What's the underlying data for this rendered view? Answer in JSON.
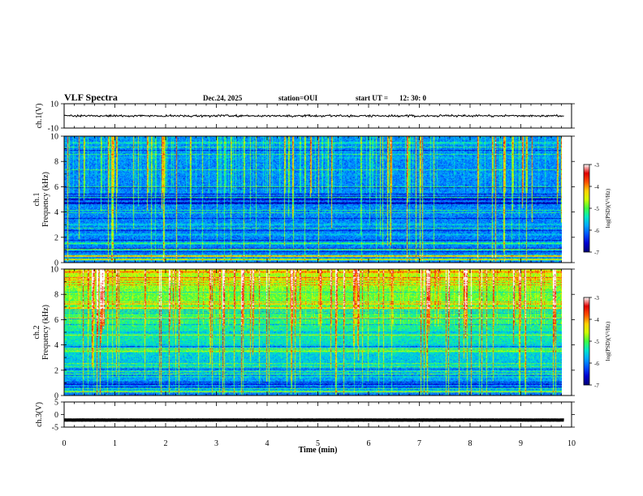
{
  "header": {
    "title": "VLF Spectra",
    "date": "Dec.24, 2025",
    "station": "station=OUI",
    "start_label": "start  UT  =",
    "start_time": "12: 30: 0"
  },
  "colors": {
    "cmap": [
      "#000078",
      "#0000d0",
      "#0050ff",
      "#00a8ff",
      "#00e8c8",
      "#40ff40",
      "#d0ff00",
      "#ffd000",
      "#ff5000",
      "#e00000",
      "#ffffff"
    ]
  },
  "chart_data": [
    {
      "type": "line",
      "name": "ch1-waveform",
      "ylabel": "ch.1(V)",
      "ylim": [
        -10,
        10
      ],
      "yticks": [
        "10",
        "-10"
      ],
      "level": 0,
      "noise_amplitude": 1.2,
      "xlim": [
        0,
        10
      ]
    },
    {
      "type": "heatmap",
      "name": "ch1-spectrogram",
      "ylabel": [
        "ch.1",
        "Frequency  (kHz)"
      ],
      "ylim": [
        0,
        10
      ],
      "yticks": [
        "0",
        "2",
        "4",
        "6",
        "8",
        "10"
      ],
      "x_end": 9.8,
      "colorbar": {
        "label": "log(PSD)(V²/Hz)",
        "ticks": [
          "-3",
          "-4",
          "-5",
          "-6",
          "-7"
        ],
        "range": [
          -7,
          -3
        ]
      },
      "bands": [
        {
          "f": 0.2,
          "v": -5.0
        },
        {
          "f": 0.5,
          "v": -4.6
        },
        {
          "f": 1.0,
          "v": -5.4
        },
        {
          "f": 1.5,
          "v": -4.9
        },
        {
          "f": 2.2,
          "v": -5.6
        },
        {
          "f": 3.0,
          "v": -5.5
        },
        {
          "f": 4.7,
          "v": -7.0
        },
        {
          "f": 5.0,
          "v": -6.9
        },
        {
          "f": 7.0,
          "v": -5.8
        },
        {
          "f": 8.3,
          "v": -5.7
        },
        {
          "f": 9.5,
          "v": -5.3
        }
      ],
      "base_level_low": -6.0,
      "base_level_high": -5.9,
      "spikes_per_min": 7
    },
    {
      "type": "heatmap",
      "name": "ch2-spectrogram",
      "ylabel": [
        "ch.2",
        "Frequency  (kHz)"
      ],
      "ylim": [
        0,
        10
      ],
      "yticks": [
        "0",
        "2",
        "4",
        "6",
        "8",
        "10"
      ],
      "x_end": 9.8,
      "colorbar": {
        "label": "log(PSD)(V²/Hz)",
        "ticks": [
          "-3",
          "-4",
          "-5",
          "-6",
          "-7"
        ],
        "range": [
          -7,
          -3
        ]
      },
      "bands": [
        {
          "f": 0.3,
          "v": -5.0
        },
        {
          "f": 1.5,
          "v": -5.3
        },
        {
          "f": 2.4,
          "v": -5.4
        },
        {
          "f": 3.5,
          "v": -4.6
        },
        {
          "f": 3.9,
          "v": -6.5
        },
        {
          "f": 5.0,
          "v": -5.8
        },
        {
          "f": 8.0,
          "v": -5.0
        },
        {
          "f": 9.3,
          "v": -4.3
        },
        {
          "f": 9.8,
          "v": -3.8
        }
      ],
      "base_level_low": -6.0,
      "base_level_high": -4.6,
      "spikes_per_min": 9
    },
    {
      "type": "line",
      "name": "ch3-waveform",
      "ylabel": "ch.3(V)",
      "ylim": [
        -5,
        5
      ],
      "yticks": [
        "5",
        "0",
        "-5"
      ],
      "level": -2.2,
      "noise_amplitude": 0.05,
      "xlim": [
        0,
        10
      ]
    }
  ],
  "xaxis": {
    "label": "Time  (min)",
    "ticks": [
      "0",
      "1",
      "2",
      "3",
      "4",
      "5",
      "6",
      "7",
      "8",
      "9",
      "10"
    ],
    "range": [
      0,
      10
    ]
  }
}
